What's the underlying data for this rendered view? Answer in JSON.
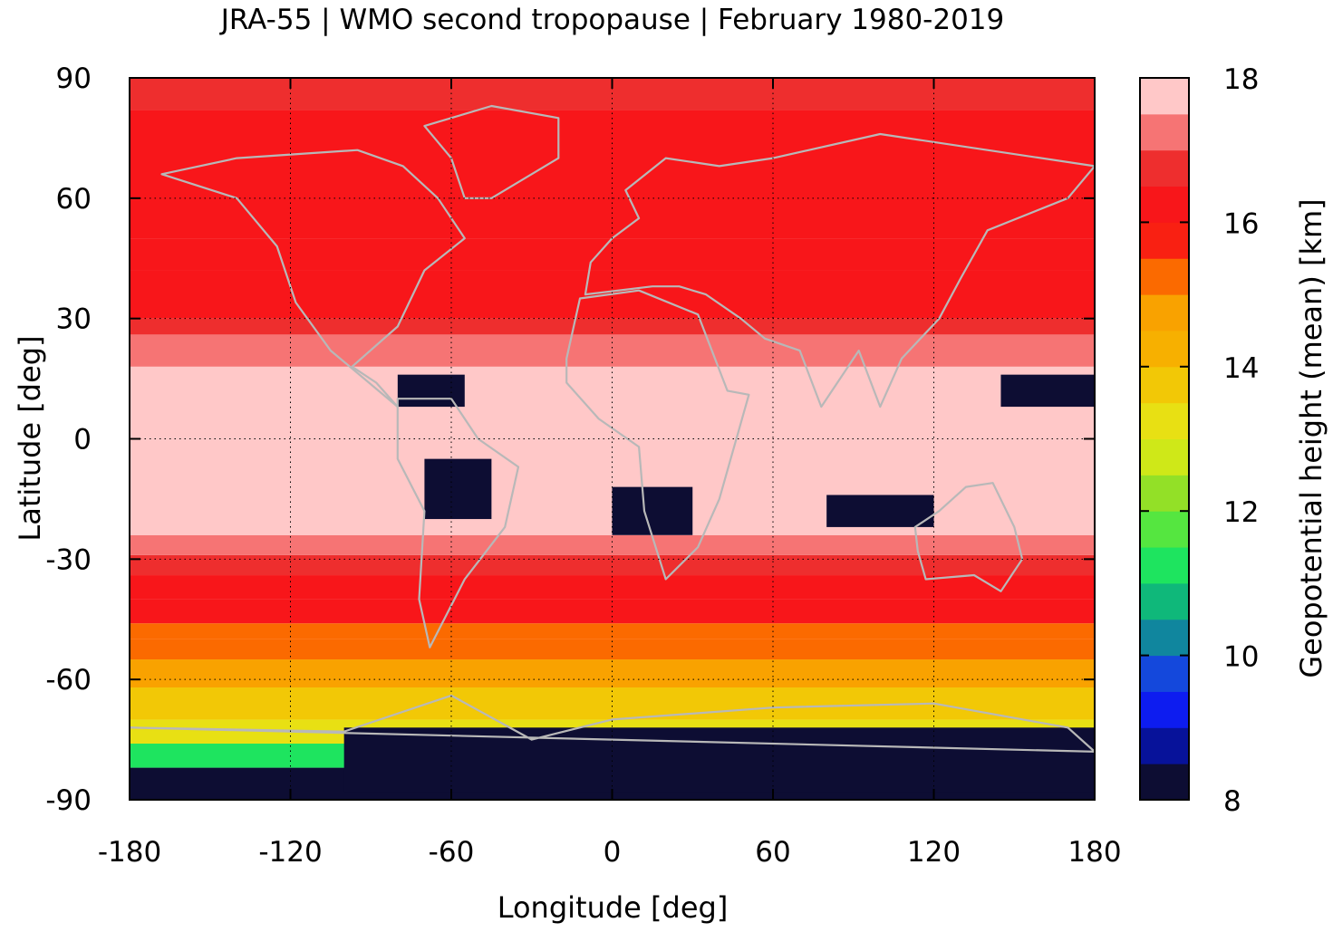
{
  "chart_data": {
    "type": "heatmap",
    "title": "JRA-55 | WMO second tropopause | February 1980-2019",
    "xlabel": "Longitude [deg]",
    "ylabel": "Latitude [deg]",
    "xlim": [
      -180,
      180
    ],
    "ylim": [
      -90,
      90
    ],
    "x_ticks": [
      "-180",
      "-120",
      "-60",
      "0",
      "60",
      "120",
      "180"
    ],
    "y_ticks": [
      "90",
      "60",
      "30",
      "0",
      "-30",
      "-60",
      "-90"
    ],
    "x_tick_values": [
      -180,
      -120,
      -60,
      0,
      60,
      120,
      180
    ],
    "y_tick_values": [
      90,
      60,
      30,
      0,
      -30,
      -60,
      -90
    ],
    "grid": true,
    "colorbar": {
      "label": "Geopotential height (mean) [km]",
      "min": 8,
      "max": 18,
      "ticks": [
        "18",
        "16",
        "14",
        "12",
        "10",
        "8"
      ],
      "tick_values": [
        18,
        16,
        14,
        12,
        10,
        8
      ],
      "colors": [
        "#0d0d33",
        "#07129a",
        "#0d1cf0",
        "#1448dc",
        "#10869e",
        "#0fb87a",
        "#1ee45f",
        "#55e640",
        "#93e027",
        "#cfe818",
        "#e8e013",
        "#f2c806",
        "#f7b000",
        "#f9a200",
        "#fb6a00",
        "#f92012",
        "#f8161a",
        "#ee2e2e",
        "#f67474",
        "#ffc8c8"
      ]
    },
    "zonal_mean_km": [
      {
        "lat_min": -90,
        "lat_max": -82,
        "value": 8.2
      },
      {
        "lat_min": -82,
        "lat_max": -76,
        "value": 11.0
      },
      {
        "lat_min": -76,
        "lat_max": -70,
        "value": 13.0
      },
      {
        "lat_min": -70,
        "lat_max": -62,
        "value": 13.8
      },
      {
        "lat_min": -62,
        "lat_max": -55,
        "value": 14.5
      },
      {
        "lat_min": -55,
        "lat_max": -50,
        "value": 15.0
      },
      {
        "lat_min": -50,
        "lat_max": -46,
        "value": 15.4
      },
      {
        "lat_min": -46,
        "lat_max": -40,
        "value": 16.2
      },
      {
        "lat_min": -40,
        "lat_max": -34,
        "value": 16.4
      },
      {
        "lat_min": -34,
        "lat_max": -29,
        "value": 16.8
      },
      {
        "lat_min": -29,
        "lat_max": -24,
        "value": 17.2
      },
      {
        "lat_min": -24,
        "lat_max": 18,
        "value": 17.8
      },
      {
        "lat_min": 18,
        "lat_max": 26,
        "value": 17.2
      },
      {
        "lat_min": 26,
        "lat_max": 30,
        "value": 16.8
      },
      {
        "lat_min": 30,
        "lat_max": 42,
        "value": 16.4
      },
      {
        "lat_min": 42,
        "lat_max": 50,
        "value": 16.2
      },
      {
        "lat_min": 50,
        "lat_max": 82,
        "value": 16.4
      },
      {
        "lat_min": 82,
        "lat_max": 90,
        "value": 16.8
      }
    ],
    "low_value_regions_km": [
      {
        "name": "",
        "lon": [
          -80,
          -55
        ],
        "lat": [
          8,
          16
        ],
        "value": 8.2
      },
      {
        "name": "",
        "lon": [
          -70,
          -45
        ],
        "lat": [
          -20,
          -5
        ],
        "value": 8.2
      },
      {
        "name": "",
        "lon": [
          0,
          30
        ],
        "lat": [
          -24,
          -12
        ],
        "value": 8.2
      },
      {
        "name": "",
        "lon": [
          80,
          120
        ],
        "lat": [
          -22,
          -14
        ],
        "value": 8.2
      },
      {
        "name": "",
        "lon": [
          145,
          180
        ],
        "lat": [
          8,
          16
        ],
        "value": 8.2
      },
      {
        "name": "",
        "lon": [
          -100,
          180
        ],
        "lat": [
          -88,
          -72
        ],
        "value": 8.2
      }
    ]
  }
}
